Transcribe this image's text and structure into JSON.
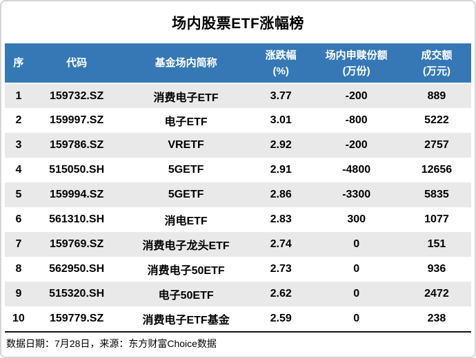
{
  "title": "场内股票ETF涨幅榜",
  "table": {
    "columns": [
      {
        "line1": "序",
        "line2": ""
      },
      {
        "line1": "代码",
        "line2": ""
      },
      {
        "line1": "基金场内简称",
        "line2": ""
      },
      {
        "line1": "涨跌幅",
        "line2": "(%)"
      },
      {
        "line1": "场内申赎份额",
        "line2": "(万份)"
      },
      {
        "line1": "成交额",
        "line2": "(万元)"
      }
    ],
    "rows": [
      {
        "num": "1",
        "code": "159732.SZ",
        "name": "消费电子ETF",
        "change": "3.77",
        "shares": "-200",
        "turnover": "889"
      },
      {
        "num": "2",
        "code": "159997.SZ",
        "name": "电子ETF",
        "change": "3.01",
        "shares": "-800",
        "turnover": "5222"
      },
      {
        "num": "3",
        "code": "159786.SZ",
        "name": "VRETF",
        "change": "2.92",
        "shares": "-200",
        "turnover": "2757"
      },
      {
        "num": "4",
        "code": "515050.SH",
        "name": "5GETF",
        "change": "2.91",
        "shares": "-4800",
        "turnover": "12656"
      },
      {
        "num": "5",
        "code": "159994.SZ",
        "name": "5GETF",
        "change": "2.86",
        "shares": "-3300",
        "turnover": "5835"
      },
      {
        "num": "6",
        "code": "561310.SH",
        "name": "消电ETF",
        "change": "2.83",
        "shares": "300",
        "turnover": "1077"
      },
      {
        "num": "7",
        "code": "159769.SZ",
        "name": "消费电子龙头ETF",
        "change": "2.74",
        "shares": "0",
        "turnover": "151"
      },
      {
        "num": "8",
        "code": "562950.SH",
        "name": "消费电子50ETF",
        "change": "2.73",
        "shares": "0",
        "turnover": "936"
      },
      {
        "num": "9",
        "code": "515320.SH",
        "name": "电子50ETF",
        "change": "2.62",
        "shares": "0",
        "turnover": "2472"
      },
      {
        "num": "10",
        "code": "159779.SZ",
        "name": "消费电子ETF基金",
        "change": "2.59",
        "shares": "0",
        "turnover": "238"
      }
    ]
  },
  "footer": {
    "text": "数据日期：7月28日，来源：东方财富Choice数据"
  },
  "colors": {
    "header_bg": "#3578b5",
    "row_alt": "#e9e9e9",
    "card_border": "#d5d5d5",
    "footer_rule": "#111111"
  },
  "chart_data": {
    "type": "table",
    "title": "场内股票ETF涨幅榜",
    "columns": [
      "序",
      "代码",
      "基金场内简称",
      "涨跌幅(%)",
      "场内申赎份额(万份)",
      "成交额(万元)"
    ],
    "rows": [
      [
        1,
        "159732.SZ",
        "消费电子ETF",
        3.77,
        -200,
        889
      ],
      [
        2,
        "159997.SZ",
        "电子ETF",
        3.01,
        -800,
        5222
      ],
      [
        3,
        "159786.SZ",
        "VRETF",
        2.92,
        -200,
        2757
      ],
      [
        4,
        "515050.SH",
        "5GETF",
        2.91,
        -4800,
        12656
      ],
      [
        5,
        "159994.SZ",
        "5GETF",
        2.86,
        -3300,
        5835
      ],
      [
        6,
        "561310.SH",
        "消电ETF",
        2.83,
        300,
        1077
      ],
      [
        7,
        "159769.SZ",
        "消费电子龙头ETF",
        2.74,
        0,
        151
      ],
      [
        8,
        "562950.SH",
        "消费电子50ETF",
        2.73,
        0,
        936
      ],
      [
        9,
        "515320.SH",
        "电子50ETF",
        2.62,
        0,
        2472
      ],
      [
        10,
        "159779.SZ",
        "消费电子ETF基金",
        2.59,
        0,
        238
      ]
    ],
    "source_note": "数据日期：7月28日，来源：东方财富Choice数据",
    "layout_hints": {
      "header_style": "blue-bar",
      "striped_rows": true,
      "grid": "off"
    }
  }
}
